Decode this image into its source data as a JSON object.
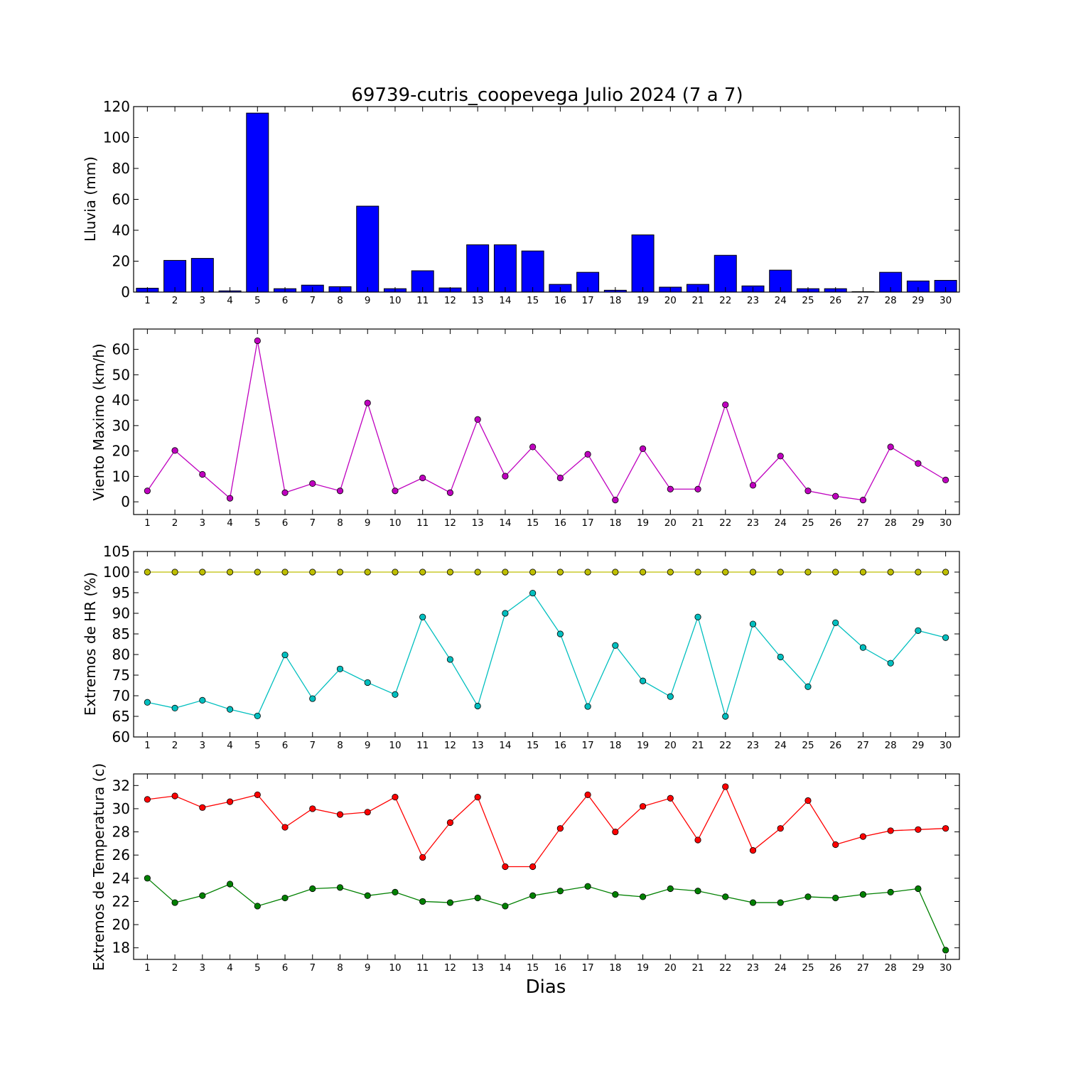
{
  "figure": {
    "title": "69739-cutris_coopevega Julio 2024  (7 a 7)",
    "xlabel": "Dias"
  },
  "chart_data": [
    {
      "type": "bar",
      "ylabel": "Lluvia (mm)",
      "ylim": [
        0,
        120
      ],
      "yticks": [
        0,
        20,
        40,
        60,
        80,
        100,
        120
      ],
      "categories": [
        "1",
        "2",
        "3",
        "4",
        "5",
        "6",
        "7",
        "8",
        "9",
        "10",
        "11",
        "12",
        "13",
        "14",
        "15",
        "16",
        "17",
        "18",
        "19",
        "20",
        "21",
        "22",
        "23",
        "24",
        "25",
        "26",
        "27",
        "28",
        "29",
        "30"
      ],
      "series": [
        {
          "color": "#0000ff",
          "values": [
            2.5,
            20.5,
            21.8,
            0.8,
            115.8,
            2.2,
            4.5,
            3.5,
            55.6,
            2.2,
            13.8,
            2.7,
            30.6,
            30.6,
            26.6,
            5.0,
            12.8,
            1.2,
            37.0,
            3.2,
            5.0,
            23.8,
            4.0,
            14.2,
            2.2,
            2.2,
            0.3,
            12.8,
            7.2,
            7.6
          ]
        }
      ],
      "grid": false,
      "legend": "none"
    },
    {
      "type": "line",
      "ylabel": "Viento Maximo (km/h)",
      "ylim": [
        -5,
        68
      ],
      "yticks": [
        0,
        10,
        20,
        30,
        40,
        50,
        60
      ],
      "categories": [
        "1",
        "2",
        "3",
        "4",
        "5",
        "6",
        "7",
        "8",
        "9",
        "10",
        "11",
        "12",
        "13",
        "14",
        "15",
        "16",
        "17",
        "18",
        "19",
        "20",
        "21",
        "22",
        "23",
        "24",
        "25",
        "26",
        "27",
        "28",
        "29",
        "30"
      ],
      "series": [
        {
          "color": "#bf00bf",
          "values": [
            4.3,
            20.2,
            10.8,
            1.4,
            63.4,
            3.6,
            7.2,
            4.3,
            38.9,
            4.3,
            9.4,
            3.6,
            32.4,
            10.1,
            21.6,
            9.4,
            18.7,
            0.7,
            20.9,
            5.0,
            5.0,
            38.2,
            6.5,
            18.0,
            4.3,
            2.2,
            0.7,
            21.6,
            15.1,
            8.6
          ]
        }
      ],
      "grid": false,
      "legend": "none"
    },
    {
      "type": "line",
      "ylabel": "Extremos de HR (%)",
      "ylim": [
        60,
        105
      ],
      "yticks": [
        60,
        65,
        70,
        75,
        80,
        85,
        90,
        95,
        100,
        105
      ],
      "categories": [
        "1",
        "2",
        "3",
        "4",
        "5",
        "6",
        "7",
        "8",
        "9",
        "10",
        "11",
        "12",
        "13",
        "14",
        "15",
        "16",
        "17",
        "18",
        "19",
        "20",
        "21",
        "22",
        "23",
        "24",
        "25",
        "26",
        "27",
        "28",
        "29",
        "30"
      ],
      "series": [
        {
          "color": "#bfbf00",
          "values": [
            100,
            100,
            100,
            100,
            100,
            100,
            100,
            100,
            100,
            100,
            100,
            100,
            100,
            100,
            100,
            100,
            100,
            100,
            100,
            100,
            100,
            100,
            100,
            100,
            100,
            100,
            100,
            100,
            100,
            100
          ]
        },
        {
          "color": "#00bfbf",
          "values": [
            68.4,
            67.0,
            68.9,
            66.7,
            65.1,
            79.9,
            69.3,
            76.5,
            73.2,
            70.3,
            89.1,
            78.8,
            67.5,
            90.0,
            94.9,
            85.0,
            67.4,
            82.2,
            73.6,
            69.8,
            89.1,
            65.0,
            87.4,
            79.4,
            72.2,
            87.7,
            81.7,
            77.9,
            85.8,
            84.1
          ]
        }
      ],
      "grid": false,
      "legend": "none"
    },
    {
      "type": "line",
      "ylabel": "Extremos de Temperatura (c)",
      "ylim": [
        17,
        33
      ],
      "yticks": [
        18,
        20,
        22,
        24,
        26,
        28,
        30,
        32
      ],
      "categories": [
        "1",
        "2",
        "3",
        "4",
        "5",
        "6",
        "7",
        "8",
        "9",
        "10",
        "11",
        "12",
        "13",
        "14",
        "15",
        "16",
        "17",
        "18",
        "19",
        "20",
        "21",
        "22",
        "23",
        "24",
        "25",
        "26",
        "27",
        "28",
        "29",
        "30"
      ],
      "series": [
        {
          "color": "#ff0000",
          "values": [
            30.8,
            31.1,
            30.1,
            30.6,
            31.2,
            28.4,
            30.0,
            29.5,
            29.7,
            31.0,
            25.8,
            28.8,
            31.0,
            25.0,
            25.0,
            28.3,
            31.2,
            28.0,
            30.2,
            30.9,
            27.3,
            31.9,
            26.4,
            28.3,
            30.7,
            26.9,
            27.6,
            28.1,
            28.2,
            28.3
          ]
        },
        {
          "color": "#008000",
          "values": [
            24.0,
            21.9,
            22.5,
            23.5,
            21.6,
            22.3,
            23.1,
            23.2,
            22.5,
            22.8,
            22.0,
            21.9,
            22.3,
            21.6,
            22.5,
            22.9,
            23.3,
            22.6,
            22.4,
            23.1,
            22.9,
            22.4,
            21.9,
            21.9,
            22.4,
            22.3,
            22.6,
            22.8,
            23.1,
            17.8
          ]
        }
      ],
      "grid": false,
      "legend": "none"
    }
  ]
}
